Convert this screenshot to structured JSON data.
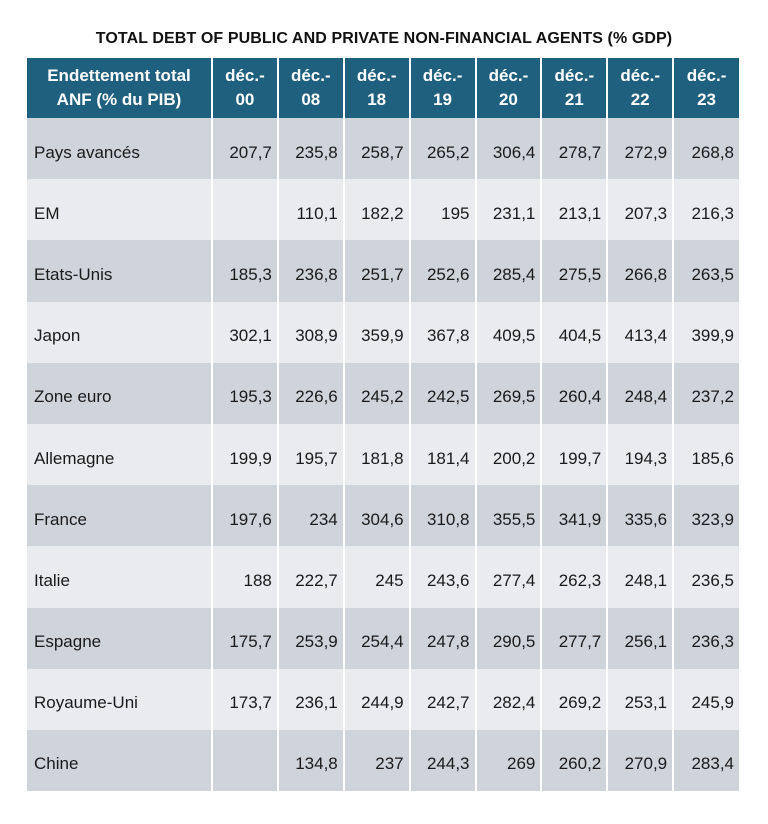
{
  "title": "TOTAL DEBT OF PUBLIC AND PRIVATE NON-FINANCIAL AGENTS (% GDP)",
  "header": {
    "row_label": [
      "Endettement total",
      "ANF (% du PIB)"
    ],
    "columns": [
      [
        "déc.-",
        "00"
      ],
      [
        "déc.-",
        "08"
      ],
      [
        "déc.-",
        "18"
      ],
      [
        "déc.-",
        "19"
      ],
      [
        "déc.-",
        "20"
      ],
      [
        "déc.-",
        "21"
      ],
      [
        "déc.-",
        "22"
      ],
      [
        "déc.-",
        "23"
      ]
    ]
  },
  "rows": [
    {
      "label": "Pays avancés",
      "values": [
        "207,7",
        "235,8",
        "258,7",
        "265,2",
        "306,4",
        "278,7",
        "272,9",
        "268,8"
      ]
    },
    {
      "label": "EM",
      "values": [
        "",
        "110,1",
        "182,2",
        "195",
        "231,1",
        "213,1",
        "207,3",
        "216,3"
      ]
    },
    {
      "label": "Etats-Unis",
      "values": [
        "185,3",
        "236,8",
        "251,7",
        "252,6",
        "285,4",
        "275,5",
        "266,8",
        "263,5"
      ]
    },
    {
      "label": "Japon",
      "values": [
        "302,1",
        "308,9",
        "359,9",
        "367,8",
        "409,5",
        "404,5",
        "413,4",
        "399,9"
      ]
    },
    {
      "label": "Zone euro",
      "values": [
        "195,3",
        "226,6",
        "245,2",
        "242,5",
        "269,5",
        "260,4",
        "248,4",
        "237,2"
      ]
    },
    {
      "label": "Allemagne",
      "values": [
        "199,9",
        "195,7",
        "181,8",
        "181,4",
        "200,2",
        "199,7",
        "194,3",
        "185,6"
      ]
    },
    {
      "label": "France",
      "values": [
        "197,6",
        "234",
        "304,6",
        "310,8",
        "355,5",
        "341,9",
        "335,6",
        "323,9"
      ]
    },
    {
      "label": "Italie",
      "values": [
        "188",
        "222,7",
        "245",
        "243,6",
        "277,4",
        "262,3",
        "248,1",
        "236,5"
      ]
    },
    {
      "label": "Espagne",
      "values": [
        "175,7",
        "253,9",
        "254,4",
        "247,8",
        "290,5",
        "277,7",
        "256,1",
        "236,3"
      ]
    },
    {
      "label": "Royaume-Uni",
      "values": [
        "173,7",
        "236,1",
        "244,9",
        "242,7",
        "282,4",
        "269,2",
        "253,1",
        "245,9"
      ]
    },
    {
      "label": "Chine",
      "values": [
        "",
        "134,8",
        "237",
        "244,3",
        "269",
        "260,2",
        "270,9",
        "283,4"
      ]
    }
  ],
  "colors": {
    "header_bg": "#1f607f",
    "header_text": "#ffffff",
    "row_dark": "#cfd3da",
    "row_light": "#e9ebee"
  }
}
